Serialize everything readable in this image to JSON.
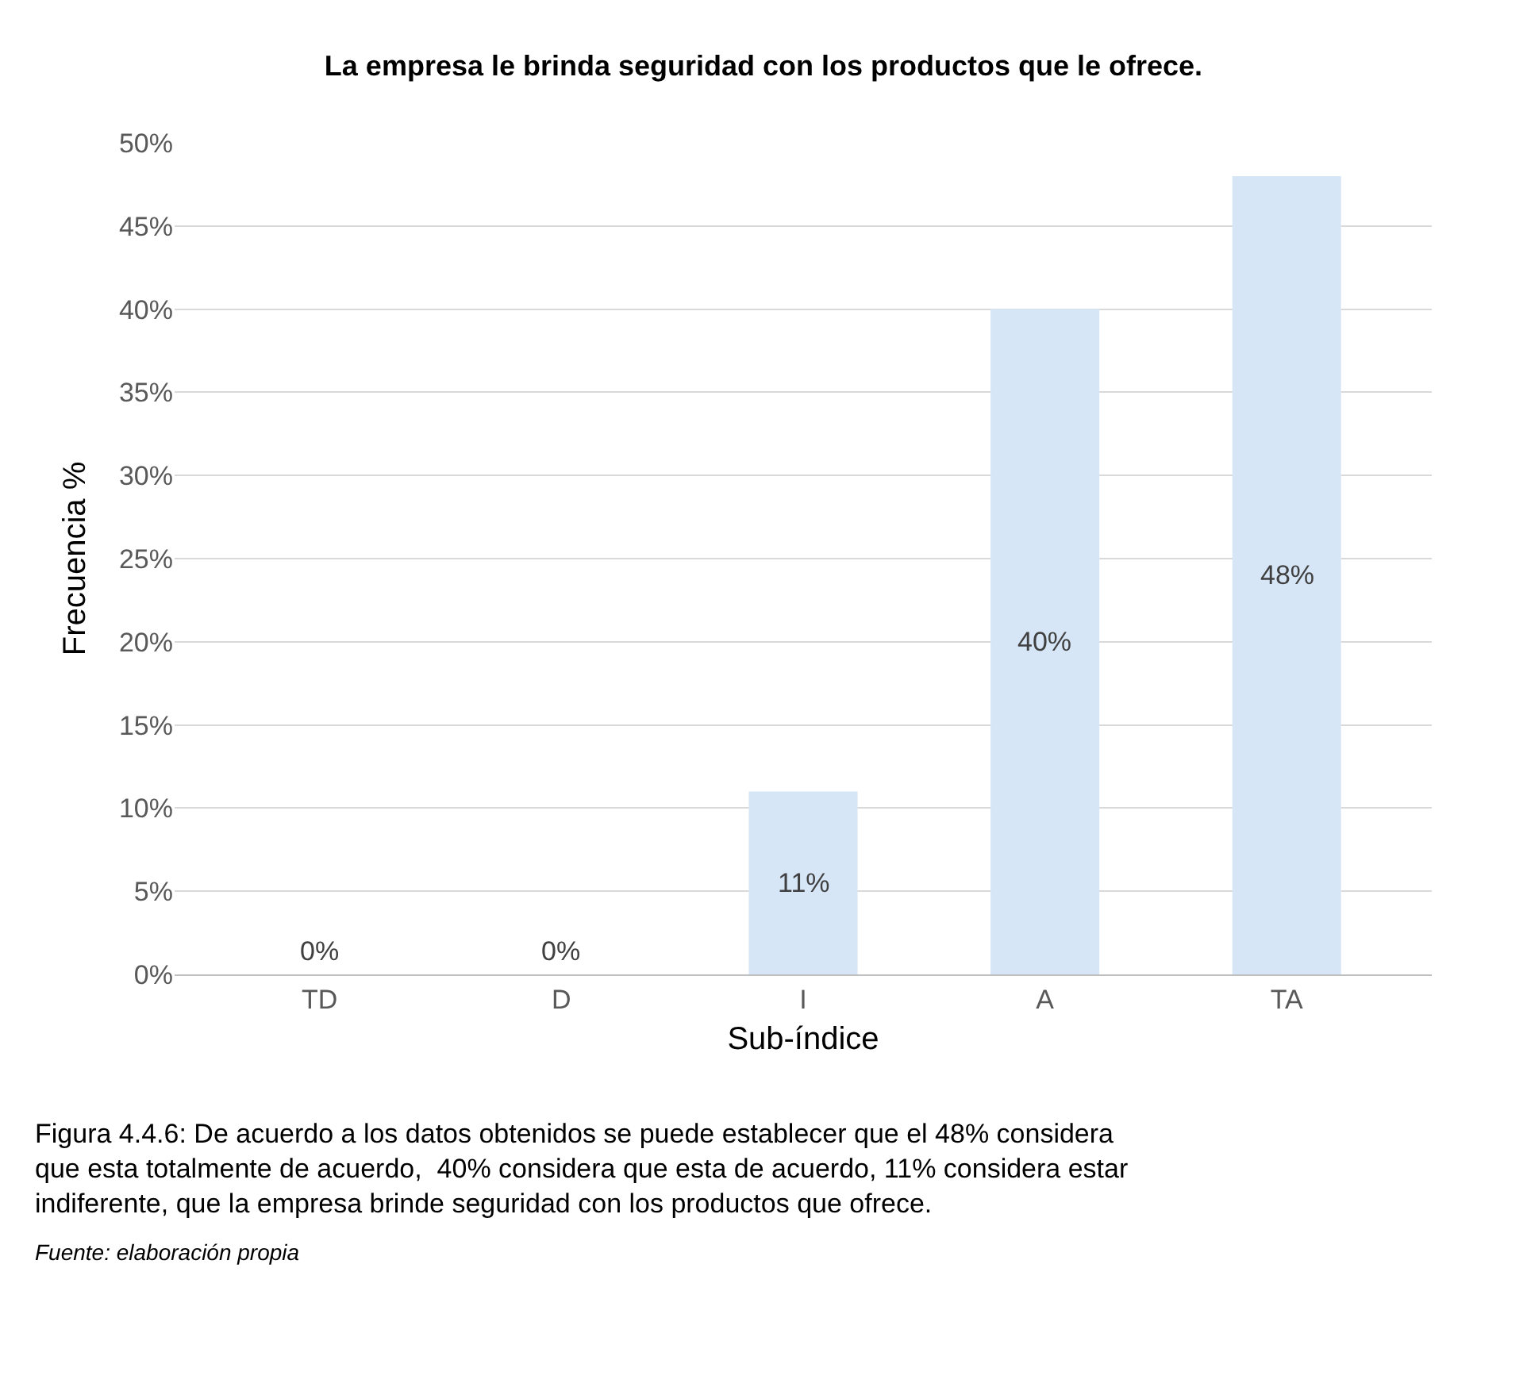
{
  "chart_data": {
    "type": "bar",
    "title": "La empresa le brinda seguridad con los productos que le ofrece.",
    "xlabel": "Sub-índice",
    "ylabel": "Frecuencia %",
    "categories": [
      "TD",
      "D",
      "I",
      "A",
      "TA"
    ],
    "values": [
      0,
      0,
      11,
      40,
      48
    ],
    "value_labels": [
      "0%",
      "0%",
      "11%",
      "40%",
      "48%"
    ],
    "color": "#d6e6f7",
    "ylim": [
      0,
      50
    ],
    "yticks": [
      {
        "value": 0,
        "label": "0%"
      },
      {
        "value": 5,
        "label": "5%"
      },
      {
        "value": 10,
        "label": "10%"
      },
      {
        "value": 15,
        "label": "15%"
      },
      {
        "value": 20,
        "label": "20%"
      },
      {
        "value": 25,
        "label": "25%"
      },
      {
        "value": 30,
        "label": "30%"
      },
      {
        "value": 35,
        "label": "35%"
      },
      {
        "value": 40,
        "label": "40%"
      },
      {
        "value": 45,
        "label": "45%"
      },
      {
        "value": 50,
        "label": "50%"
      }
    ],
    "grid": "y",
    "legend": false,
    "annotations": [
      "Figura 4.4.6: De acuerdo a los datos obtenidos se puede establecer que el 48% considera que esta totalmente de acuerdo,  40% considera que esta de acuerdo, 11% considera estar indiferente, que la empresa brinde seguridad con los productos que ofrece.",
      "Fuente: elaboración propia"
    ]
  }
}
